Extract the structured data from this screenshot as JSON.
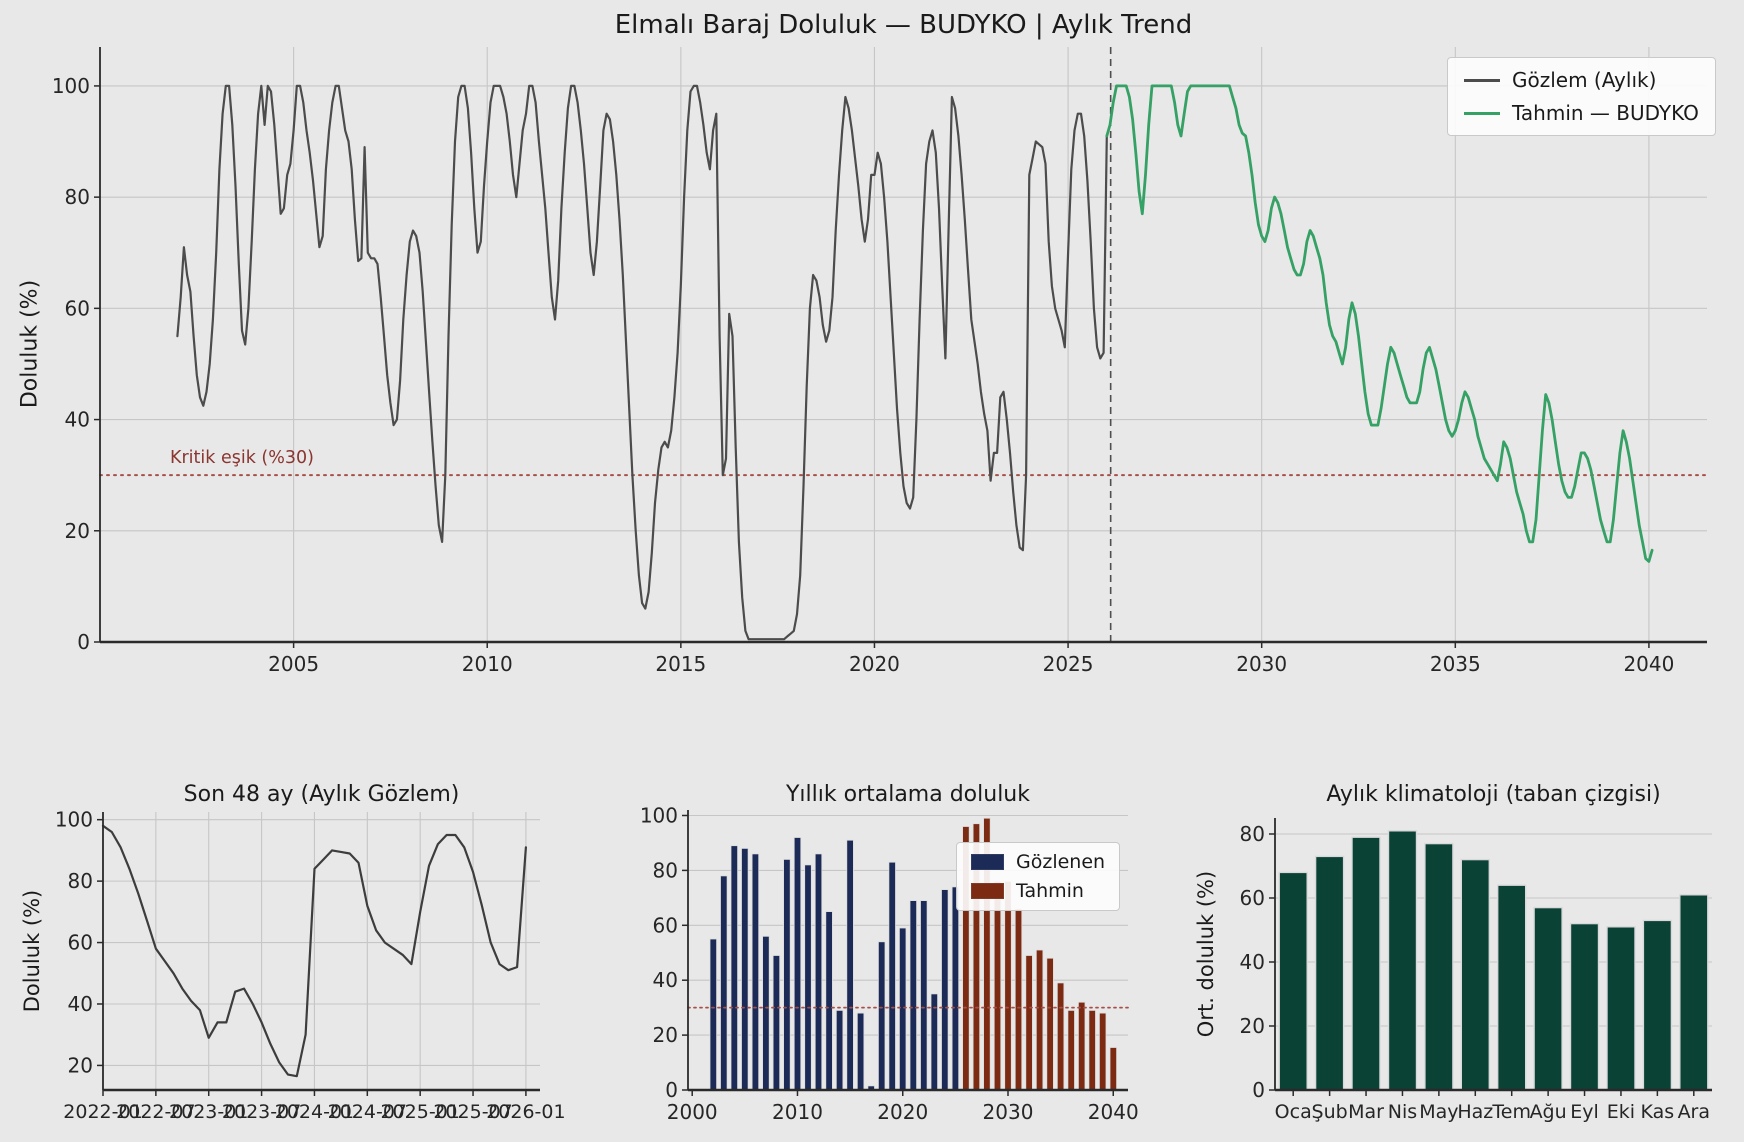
{
  "theme": {
    "background": "#e8e8e8",
    "grid": "#c6c6c6",
    "spine": "#2a2a2a",
    "tick_text": "#262626",
    "threshold_line": "#a85048",
    "threshold_text": "#8a3530",
    "dashed_line": "#4f4f4f",
    "legend_bg": "#fcfcfc"
  },
  "chart_data": [
    {
      "type": "line",
      "title": "Elmalı Baraj Doluluk — BUDYKO | Aylık Trend",
      "ylabel": "Doluluk (%)",
      "xlim": [
        2000,
        2041.5
      ],
      "ylim": [
        0,
        107
      ],
      "xticks": [
        2005,
        2010,
        2015,
        2020,
        2025,
        2030,
        2035,
        2040
      ],
      "yticks": [
        0,
        20,
        40,
        60,
        80,
        100
      ],
      "grid": "both",
      "legend_position": "upper right",
      "threshold": {
        "value": 30,
        "label": "Kritik eşik (%30)"
      },
      "forecast_start_x": 2026.1,
      "series": [
        {
          "name": "Gözlem (Aylık)",
          "color": "#4c4c4c",
          "start_year": 2002,
          "monthly": [
            55,
            62,
            71,
            66,
            63,
            55,
            48,
            44,
            42.5,
            45,
            50,
            58,
            70,
            85,
            95,
            100,
            100,
            93,
            82,
            68,
            56,
            53.5,
            60,
            72,
            85,
            95,
            100,
            93,
            100,
            99,
            93,
            85,
            77,
            78,
            84,
            86,
            92,
            100,
            100,
            97,
            92,
            88,
            83,
            77,
            71,
            73,
            85,
            92,
            97,
            100,
            100,
            96,
            92,
            90,
            85,
            76,
            68.5,
            69,
            89,
            70,
            69,
            69,
            68,
            62,
            55,
            48,
            43,
            39,
            40,
            47,
            58,
            66,
            72,
            74,
            73,
            70,
            63,
            54,
            45,
            36,
            28,
            21,
            18,
            30,
            55,
            75,
            90,
            98,
            100,
            100,
            96,
            88,
            78,
            70,
            72,
            82,
            90,
            97,
            100,
            100,
            100,
            98,
            95,
            90,
            84,
            80,
            86,
            92,
            95,
            100,
            100,
            97,
            90,
            84,
            78,
            70,
            62,
            58,
            65,
            78,
            88,
            96,
            100,
            100,
            97,
            92,
            86,
            78,
            70,
            66,
            72,
            82,
            92,
            95,
            94,
            90,
            84,
            76,
            66,
            54,
            42,
            30,
            20,
            12,
            7,
            6,
            9,
            16,
            25,
            31,
            35,
            36,
            35,
            38,
            44,
            52,
            64,
            80,
            92,
            99,
            100,
            100,
            97,
            93,
            88,
            85,
            92,
            95,
            55,
            30,
            33,
            59,
            55,
            35,
            18,
            8,
            2,
            0.5,
            0.5,
            0.5,
            0.5,
            0.5,
            0.5,
            0.5,
            0.5,
            0.5,
            0.5,
            0.5,
            0.5,
            1,
            1.5,
            2,
            5,
            12,
            28,
            46,
            60,
            66,
            65,
            62,
            57,
            54,
            56,
            62,
            74,
            84,
            92,
            98,
            96,
            92,
            87,
            82,
            76,
            72,
            76,
            84,
            84,
            88,
            86,
            80,
            72,
            62,
            52,
            42,
            34,
            28,
            25,
            24,
            26,
            40,
            58,
            74,
            86,
            90,
            92,
            88,
            78,
            64,
            51,
            75,
            98,
            96,
            91,
            84,
            76,
            67,
            58,
            54,
            50,
            45,
            41,
            38,
            29,
            34,
            34,
            44,
            45,
            40,
            34,
            27,
            21,
            17,
            16.5,
            30,
            84,
            87,
            90,
            89.5,
            89,
            86,
            72,
            64,
            60,
            58,
            56,
            53,
            70,
            85,
            92,
            95,
            95,
            91,
            83,
            72,
            60,
            53,
            51,
            52,
            91
          ]
        },
        {
          "name": "Tahmin — BUDYKO",
          "color": "#35a165",
          "start_year": 2026,
          "monthly": [
            91,
            93,
            97,
            100,
            100,
            100,
            100,
            98,
            94,
            88,
            81,
            77,
            84,
            93,
            100,
            100,
            100,
            100,
            100,
            100,
            100,
            97,
            93,
            91,
            95,
            99,
            100,
            100,
            100,
            100,
            100,
            100,
            100,
            100,
            100,
            100,
            100,
            100,
            100,
            98,
            96,
            93,
            91.5,
            91,
            88,
            84,
            79,
            75,
            73,
            72,
            74,
            78,
            80,
            79,
            77,
            74,
            71,
            69,
            67,
            66,
            66,
            68,
            72,
            74,
            73,
            71,
            69,
            66,
            61,
            57,
            55,
            54,
            52,
            50,
            53,
            58,
            61,
            59,
            55,
            50,
            45,
            41,
            39,
            39,
            39,
            42,
            46,
            50,
            53,
            52,
            50,
            48,
            46,
            44,
            43,
            43,
            43,
            45,
            49,
            52,
            53,
            51,
            49,
            46,
            43,
            40,
            38,
            37,
            38,
            40,
            43,
            45,
            44,
            42,
            40,
            37,
            35,
            33,
            32,
            31,
            30,
            29,
            32,
            36,
            35,
            33,
            30,
            27,
            25,
            23,
            20,
            18,
            18,
            22,
            30,
            38,
            44.5,
            43,
            40,
            36,
            32,
            29,
            27,
            26,
            26,
            28,
            31,
            34,
            34,
            33,
            31,
            28,
            25,
            22,
            20,
            18,
            18,
            22,
            28,
            34,
            38,
            36,
            33,
            29,
            25,
            21,
            18,
            15,
            14.5,
            16.5
          ]
        }
      ]
    },
    {
      "type": "line",
      "title": "Son 48 ay (Aylık Gözlem)",
      "ylabel": "Doluluk (%)",
      "color": "#3d3d3d",
      "ylim": [
        12,
        102.5
      ],
      "yticks": [
        20,
        40,
        60,
        80,
        100
      ],
      "tick_every_months": 6,
      "x_labels": [
        "2022-01",
        "2022-07",
        "2023-01",
        "2023-07",
        "2024-01",
        "2024-07",
        "2025-01",
        "2025-07",
        "2026-01"
      ],
      "values": [
        98,
        96,
        91,
        84,
        76,
        67,
        58,
        54,
        50,
        45,
        41,
        38,
        29,
        34,
        34,
        44,
        45,
        40,
        34,
        27,
        21,
        17,
        16.5,
        30,
        84,
        87,
        90,
        89.5,
        89,
        86,
        72,
        64,
        60,
        58,
        56,
        53,
        70,
        85,
        92,
        95,
        95,
        91,
        83,
        72,
        60,
        53,
        51,
        52,
        91
      ]
    },
    {
      "type": "bar",
      "title": "Yıllık ortalama doluluk",
      "xlim": [
        1999.6,
        2041.4
      ],
      "ylim": [
        0,
        102
      ],
      "xticks": [
        2000,
        2010,
        2020,
        2030,
        2040
      ],
      "yticks": [
        0,
        20,
        40,
        60,
        80,
        100
      ],
      "threshold": 30,
      "series": [
        {
          "name": "Gözlenen",
          "color": "#1b2a56",
          "start_year": 2002,
          "values": [
            55,
            78,
            89,
            88,
            86,
            56,
            49,
            84,
            92,
            82,
            86,
            65,
            29,
            91,
            28,
            1.5,
            54,
            83,
            59,
            69,
            69,
            35,
            73,
            74
          ]
        },
        {
          "name": "Tahmin",
          "color": "#7c2b12",
          "start_year": 2026,
          "values": [
            96,
            97,
            99,
            76,
            76,
            66,
            49,
            51,
            48,
            39,
            29,
            32,
            29,
            28,
            15.5
          ]
        }
      ]
    },
    {
      "type": "bar",
      "title": "Aylık klimatoloji (taban çizgisi)",
      "ylabel": "Ort. doluluk (%)",
      "color": "#0b4236",
      "ylim": [
        0,
        85
      ],
      "yticks": [
        0,
        20,
        40,
        60,
        80
      ],
      "categories": [
        "Oca",
        "Şub",
        "Mar",
        "Nis",
        "May",
        "Haz",
        "Tem",
        "Ağu",
        "Eyl",
        "Eki",
        "Kas",
        "Ara"
      ],
      "values": [
        68,
        73,
        79,
        81,
        77,
        72,
        64,
        57,
        52,
        51,
        53,
        61
      ]
    }
  ]
}
